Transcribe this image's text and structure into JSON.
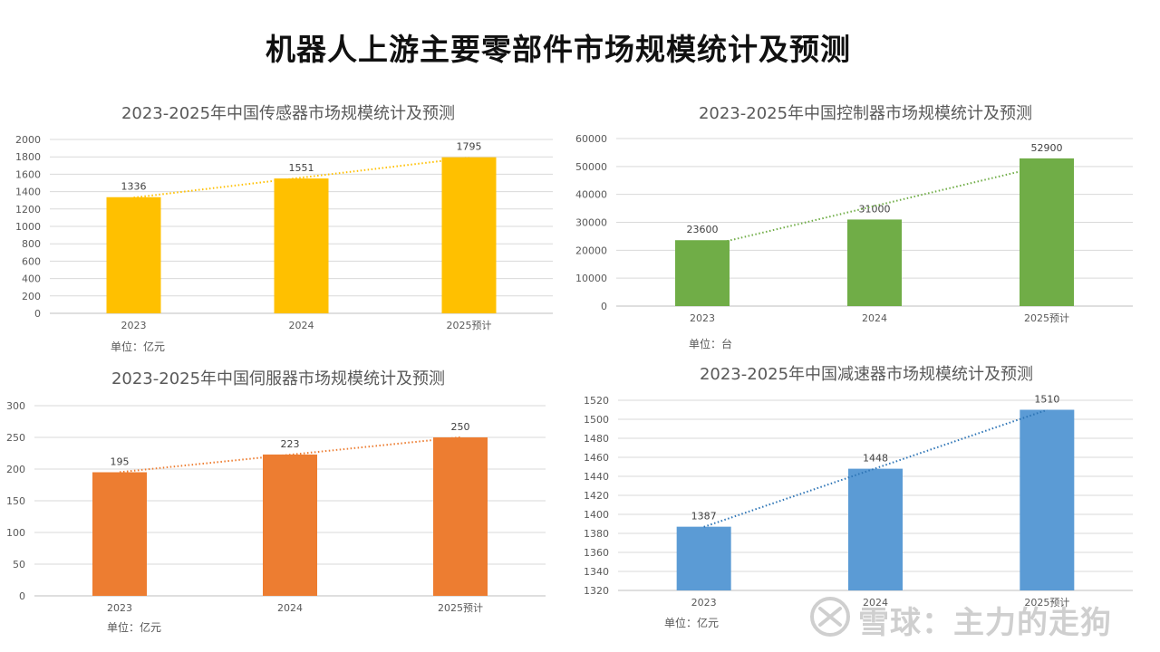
{
  "page": {
    "title": "机器人上游主要零部件市场规模统计及预测"
  },
  "watermark": {
    "text": "雪球：主力的走狗",
    "icon": "snowball-logo-icon"
  },
  "chart_data": [
    {
      "id": "sensor",
      "type": "bar",
      "title": "2023-2025年中国传感器市场规模统计及预测",
      "categories": [
        "2023",
        "2024",
        "2025预计"
      ],
      "values": [
        1336,
        1551,
        1795
      ],
      "ylim": [
        0,
        2000
      ],
      "yticks": [
        0,
        200,
        400,
        600,
        800,
        1000,
        1200,
        1400,
        1600,
        1800,
        2000
      ],
      "unit": "单位：亿元",
      "bar_color": "#FFC000",
      "trendline_color": "#FFC000",
      "trendline": true,
      "grid": true,
      "xlabel": "",
      "ylabel": ""
    },
    {
      "id": "controller",
      "type": "bar",
      "title": "2023-2025年中国控制器市场规模统计及预测",
      "categories": [
        "2023",
        "2024",
        "2025预计"
      ],
      "values": [
        23600,
        31000,
        52900
      ],
      "ylim": [
        0,
        60000
      ],
      "yticks": [
        0,
        10000,
        20000,
        30000,
        40000,
        50000,
        60000
      ],
      "unit": "单位：台",
      "bar_color": "#70AD47",
      "trendline_color": "#70AD47",
      "trendline": true,
      "grid": true,
      "xlabel": "",
      "ylabel": ""
    },
    {
      "id": "servo",
      "type": "bar",
      "title": "2023-2025年中国伺服器市场规模统计及预测",
      "categories": [
        "2023",
        "2024",
        "2025预计"
      ],
      "values": [
        195,
        223,
        250
      ],
      "ylim": [
        0,
        300
      ],
      "yticks": [
        0,
        50,
        100,
        150,
        200,
        250,
        300
      ],
      "unit": "单位：亿元",
      "bar_color": "#ED7D31",
      "trendline_color": "#ED7D31",
      "trendline": true,
      "grid": true,
      "xlabel": "",
      "ylabel": ""
    },
    {
      "id": "reducer",
      "type": "bar",
      "title": "2023-2025年中国减速器市场规模统计及预测",
      "categories": [
        "2023",
        "2024",
        "2025预计"
      ],
      "values": [
        1387,
        1448,
        1510
      ],
      "ylim": [
        1320,
        1520
      ],
      "yticks": [
        1320,
        1340,
        1360,
        1380,
        1400,
        1420,
        1440,
        1460,
        1480,
        1500,
        1520
      ],
      "unit": "单位：亿元",
      "bar_color": "#5B9BD5",
      "trendline_color": "#2E75B6",
      "trendline": true,
      "grid": true,
      "xlabel": "",
      "ylabel": ""
    }
  ]
}
